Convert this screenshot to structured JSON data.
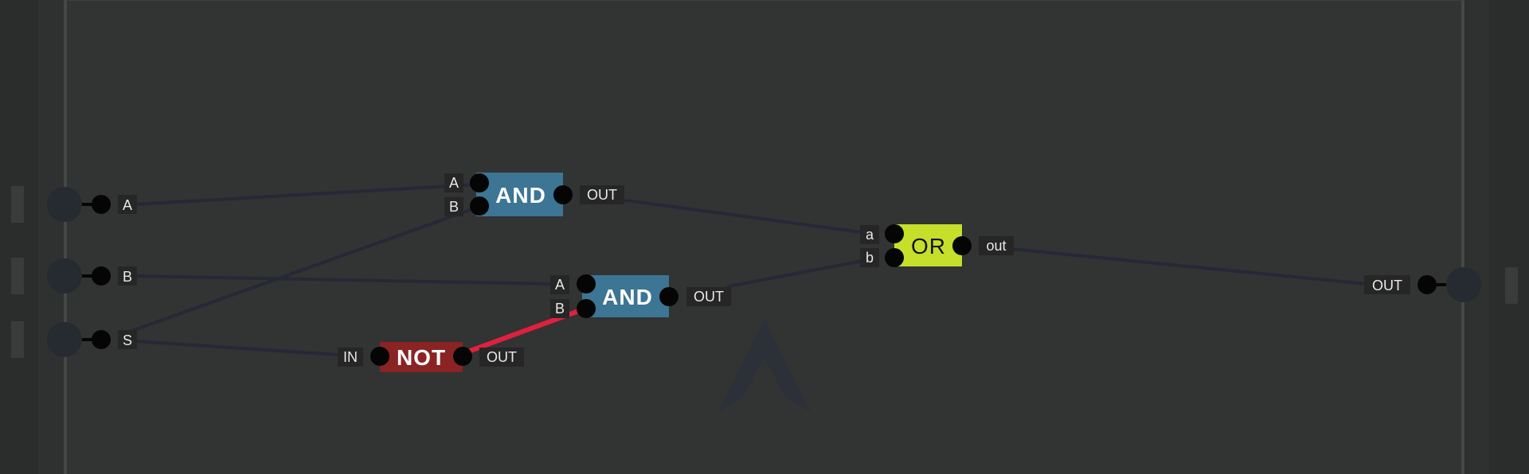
{
  "colors": {
    "and_gate": "#3d7594",
    "not_gate": "#8a2323",
    "or_gate": "#c6df2b",
    "wire": "#262836",
    "wire_active": "#e0203d",
    "pin": "#050505",
    "label_bg": "#262626",
    "io_node": "#262a31"
  },
  "inputs": [
    {
      "label": "A"
    },
    {
      "label": "B"
    },
    {
      "label": "S"
    }
  ],
  "output": {
    "label": "OUT"
  },
  "gates": {
    "and1": {
      "name": "AND",
      "in_a": "A",
      "in_b": "B",
      "out": "OUT"
    },
    "and2": {
      "name": "AND",
      "in_a": "A",
      "in_b": "B",
      "out": "OUT"
    },
    "not1": {
      "name": "NOT",
      "in": "IN",
      "out": "OUT"
    },
    "or1": {
      "name": "OR",
      "in_a": "a",
      "in_b": "b",
      "out": "out"
    }
  }
}
